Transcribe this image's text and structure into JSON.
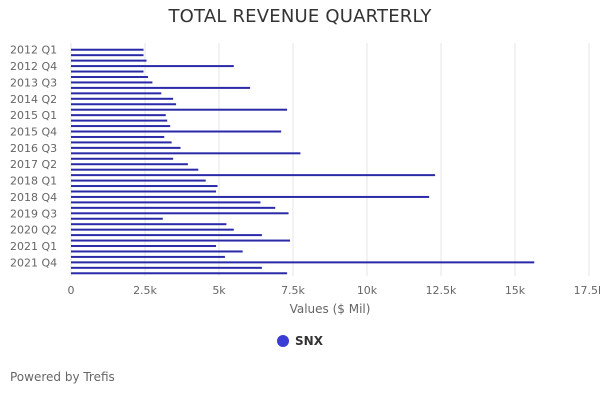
{
  "chart_data": {
    "type": "bar",
    "orientation": "horizontal",
    "title": "TOTAL REVENUE QUARTERLY",
    "xlabel": "Values ($ Mil)",
    "ylabel": "",
    "xlim": [
      0,
      17500
    ],
    "x_ticks": [
      0,
      2500,
      5000,
      7500,
      10000,
      12500,
      15000,
      17500
    ],
    "x_tick_labels": [
      "0",
      "2.5k",
      "5k",
      "7.5k",
      "10k",
      "12.5k",
      "15k",
      "17.5k"
    ],
    "grid": true,
    "categories": [
      "2012 Q1",
      "2012 Q2",
      "2012 Q3",
      "2012 Q4",
      "2013 Q1",
      "2013 Q2",
      "2013 Q3",
      "2013 Q4",
      "2014 Q1",
      "2014 Q2",
      "2014 Q3",
      "2014 Q4",
      "2015 Q1",
      "2015 Q2",
      "2015 Q3",
      "2015 Q4",
      "2016 Q1",
      "2016 Q2",
      "2016 Q3",
      "2016 Q4",
      "2017 Q1",
      "2017 Q2",
      "2017 Q3",
      "2017 Q4",
      "2018 Q1",
      "2018 Q2",
      "2018 Q3",
      "2018 Q4",
      "2019 Q1",
      "2019 Q2",
      "2019 Q3",
      "2019 Q4",
      "2020 Q1",
      "2020 Q2",
      "2020 Q3",
      "2020 Q4",
      "2021 Q1",
      "2021 Q2",
      "2021 Q3",
      "2021 Q4",
      "2022 Q1",
      "2022 Q2"
    ],
    "visible_category_labels": [
      "2012 Q1",
      "2012 Q4",
      "2013 Q3",
      "2014 Q2",
      "2015 Q1",
      "2015 Q4",
      "2016 Q3",
      "2017 Q2",
      "2018 Q1",
      "2018 Q4",
      "2019 Q3",
      "2020 Q2",
      "2021 Q1",
      "2021 Q4"
    ],
    "series": [
      {
        "name": "SNX",
        "color": "#2a2aa8",
        "values": [
          2450,
          2450,
          2550,
          5500,
          2450,
          2600,
          2750,
          6050,
          3050,
          3450,
          3550,
          7300,
          3200,
          3250,
          3350,
          7100,
          3150,
          3400,
          3700,
          7750,
          3450,
          3950,
          4300,
          12300,
          4550,
          4950,
          4900,
          12100,
          6400,
          6900,
          7350,
          3100,
          5250,
          5500,
          6450,
          7400,
          4900,
          5800,
          5200,
          15650,
          6450,
          7300
        ]
      }
    ]
  },
  "legend": {
    "label": "SNX",
    "color": "#3b3bd6"
  },
  "credit": "Powered by Trefis"
}
